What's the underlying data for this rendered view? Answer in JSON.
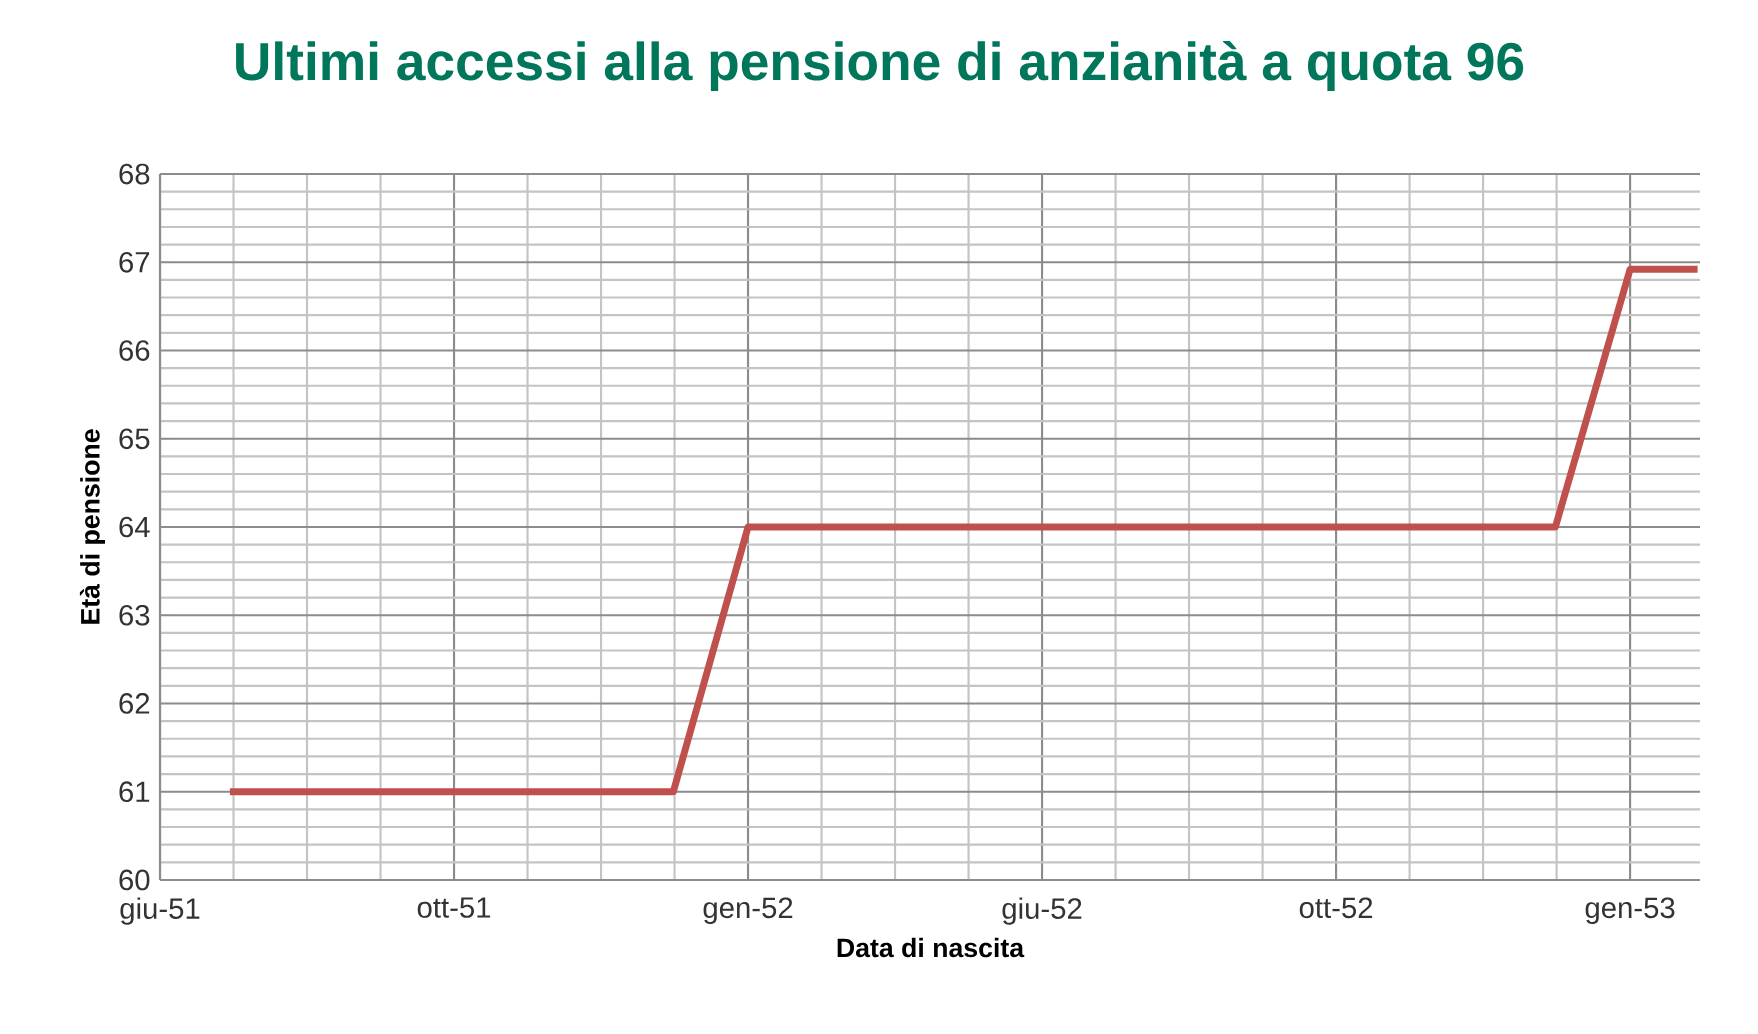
{
  "chart_data": {
    "type": "line",
    "title": "Ultimi accessi alla pensione di anzianità a quota 96",
    "xlabel": "Data di nascita",
    "ylabel": "Età di pensione",
    "x": [
      "1951-06-30",
      "1951-12-31",
      "1952-01-31",
      "1952-12-31",
      "1953-01-31",
      "1953-02-28"
    ],
    "series": [
      {
        "color": "#c0504d",
        "values": [
          61,
          61,
          64,
          64,
          66.92,
          66.92
        ]
      }
    ],
    "xlim": [
      "1951-06-01",
      "1953-03-01"
    ],
    "xticks": [
      {
        "value": "1951-06-01",
        "label": "giu-51"
      },
      {
        "value": "1951-10-01",
        "label": "ott-51"
      },
      {
        "value": "1952-01-31",
        "label": "gen-52"
      },
      {
        "value": "1952-06-01",
        "label": "giu-52"
      },
      {
        "value": "1952-10-01",
        "label": "ott-52"
      },
      {
        "value": "1953-01-31",
        "label": "gen-53"
      }
    ],
    "ylim": [
      60,
      68
    ],
    "yticks": [
      60,
      61,
      62,
      63,
      64,
      65,
      66,
      67,
      68
    ],
    "grid": true,
    "marker": "none",
    "line_style": "solid"
  }
}
